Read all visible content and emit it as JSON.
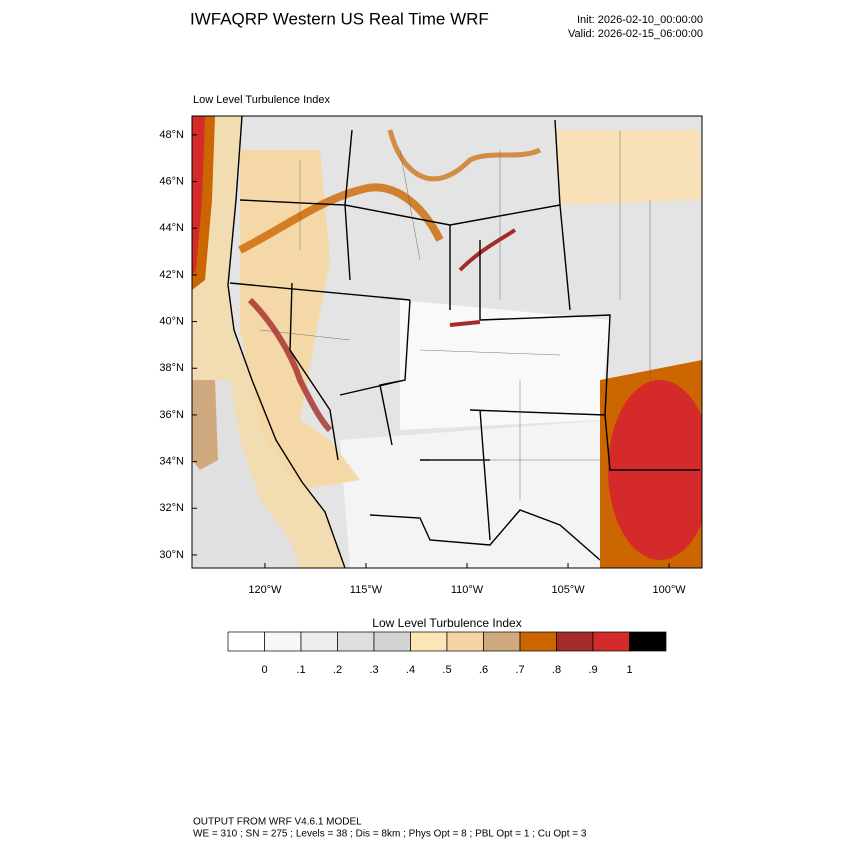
{
  "header": {
    "title": "IWFAQRP Western US Real Time WRF",
    "init": "Init: 2026-02-10_00:00:00",
    "valid": "Valid: 2026-02-15_06:00:00"
  },
  "map": {
    "subtitle": "Low Level Turbulence Index",
    "latlim": [
      29.44,
      48.81
    ],
    "lonlim": [
      -123.61,
      -98.37
    ],
    "latticks": [
      {
        "value": 30,
        "label": "30°N"
      },
      {
        "value": 32,
        "label": "32°N"
      },
      {
        "value": 34,
        "label": "34°N"
      },
      {
        "value": 36,
        "label": "36°N"
      },
      {
        "value": 38,
        "label": "38°N"
      },
      {
        "value": 40,
        "label": "40°N"
      },
      {
        "value": 42,
        "label": "42°N"
      },
      {
        "value": 44,
        "label": "44°N"
      },
      {
        "value": 46,
        "label": "46°N"
      },
      {
        "value": 48,
        "label": "48°N"
      }
    ],
    "lonticks": [
      {
        "value": -120,
        "label": "120°W"
      },
      {
        "value": -115,
        "label": "115°W"
      },
      {
        "value": -110,
        "label": "110°W"
      },
      {
        "value": -105,
        "label": "105°W"
      },
      {
        "value": -100,
        "label": "100°W"
      }
    ]
  },
  "colorbar": {
    "title": "Low Level Turbulence Index",
    "colors": [
      "#ffffff",
      "#f7f7f7",
      "#eeeeee",
      "#dedede",
      "#d4d4d4",
      "#fde5b5",
      "#f5d3a3",
      "#d1a97f",
      "#cc6600",
      "#a52a2a",
      "#d42a2a",
      "#000000"
    ],
    "ticks": [
      0,
      {
        "value": 0.1,
        "label": ".1"
      },
      {
        "value": 0.2,
        "label": ".2"
      },
      {
        "value": 0.3,
        "label": ".3"
      },
      {
        "value": 0.4,
        "label": ".4"
      },
      {
        "value": 0.5,
        "label": ".5"
      },
      {
        "value": 0.6,
        "label": ".6"
      },
      {
        "value": 0.7,
        "label": ".7"
      },
      {
        "value": 0.8,
        "label": ".8"
      },
      {
        "value": 0.9,
        "label": ".9"
      },
      1
    ]
  },
  "footer": {
    "line1": "OUTPUT FROM WRF V4.6.1 MODEL",
    "line2": "WE = 310 ; SN = 275 ; Levels = 38 ; Dis = 8km ; Phys Opt = 8 ; PBL Opt = 1 ; Cu Opt = 3"
  }
}
